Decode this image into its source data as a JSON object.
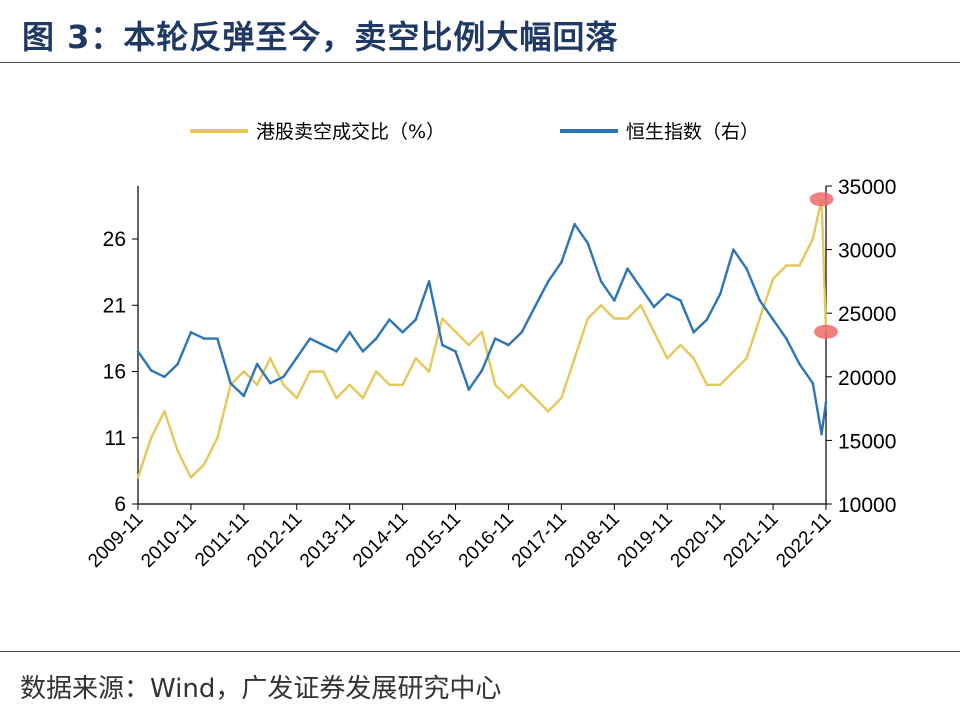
{
  "header": {
    "title": "图 3：本轮反弹至今，卖空比例大幅回落"
  },
  "footer": {
    "source": "数据来源：Wind，广发证券发展研究中心"
  },
  "chart_data": {
    "type": "line",
    "title": "图 3：本轮反弹至今，卖空比例大幅回落",
    "x_start": "2009-11",
    "x_end": "2022-11",
    "x_ticks": [
      "2009-11",
      "2010-11",
      "2011-11",
      "2012-11",
      "2013-11",
      "2014-11",
      "2015-11",
      "2016-11",
      "2017-11",
      "2018-11",
      "2019-11",
      "2020-11",
      "2021-11",
      "2022-11"
    ],
    "y_left": {
      "range": [
        6,
        30
      ],
      "ticks": [
        6,
        11,
        16,
        21,
        26
      ]
    },
    "y_right": {
      "range": [
        10000,
        35000
      ],
      "ticks": [
        10000,
        15000,
        20000,
        25000,
        30000,
        35000
      ]
    },
    "legend_position": "top",
    "grid": false,
    "series": [
      {
        "name": "港股卖空成交比（%）",
        "axis": "left",
        "color": "#e6c75a",
        "points": [
          [
            "2009-11",
            8
          ],
          [
            "2010-02",
            11
          ],
          [
            "2010-05",
            13
          ],
          [
            "2010-08",
            10
          ],
          [
            "2010-11",
            8
          ],
          [
            "2011-02",
            9
          ],
          [
            "2011-05",
            11
          ],
          [
            "2011-08",
            15
          ],
          [
            "2011-11",
            16
          ],
          [
            "2012-02",
            15
          ],
          [
            "2012-05",
            17
          ],
          [
            "2012-08",
            15
          ],
          [
            "2012-11",
            14
          ],
          [
            "2013-02",
            16
          ],
          [
            "2013-05",
            16
          ],
          [
            "2013-08",
            14
          ],
          [
            "2013-11",
            15
          ],
          [
            "2014-02",
            14
          ],
          [
            "2014-05",
            16
          ],
          [
            "2014-08",
            15
          ],
          [
            "2014-11",
            15
          ],
          [
            "2015-02",
            17
          ],
          [
            "2015-05",
            16
          ],
          [
            "2015-08",
            20
          ],
          [
            "2015-11",
            19
          ],
          [
            "2016-02",
            18
          ],
          [
            "2016-05",
            19
          ],
          [
            "2016-08",
            15
          ],
          [
            "2016-11",
            14
          ],
          [
            "2017-02",
            15
          ],
          [
            "2017-05",
            14
          ],
          [
            "2017-08",
            13
          ],
          [
            "2017-11",
            14
          ],
          [
            "2018-02",
            17
          ],
          [
            "2018-05",
            20
          ],
          [
            "2018-08",
            21
          ],
          [
            "2018-11",
            20
          ],
          [
            "2019-02",
            20
          ],
          [
            "2019-05",
            21
          ],
          [
            "2019-08",
            19
          ],
          [
            "2019-11",
            17
          ],
          [
            "2020-02",
            18
          ],
          [
            "2020-05",
            17
          ],
          [
            "2020-08",
            15
          ],
          [
            "2020-11",
            15
          ],
          [
            "2021-02",
            16
          ],
          [
            "2021-05",
            17
          ],
          [
            "2021-08",
            20
          ],
          [
            "2021-11",
            23
          ],
          [
            "2022-02",
            24
          ],
          [
            "2022-05",
            24
          ],
          [
            "2022-08",
            26
          ],
          [
            "2022-10",
            29
          ],
          [
            "2022-11",
            19
          ]
        ]
      },
      {
        "name": "恒生指数（右）",
        "axis": "right",
        "color": "#2e75b6",
        "points": [
          [
            "2009-11",
            22000
          ],
          [
            "2010-02",
            20500
          ],
          [
            "2010-05",
            20000
          ],
          [
            "2010-08",
            21000
          ],
          [
            "2010-11",
            23500
          ],
          [
            "2011-02",
            23000
          ],
          [
            "2011-05",
            23000
          ],
          [
            "2011-08",
            19500
          ],
          [
            "2011-11",
            18500
          ],
          [
            "2012-02",
            21000
          ],
          [
            "2012-05",
            19500
          ],
          [
            "2012-08",
            20000
          ],
          [
            "2012-11",
            21500
          ],
          [
            "2013-02",
            23000
          ],
          [
            "2013-05",
            22500
          ],
          [
            "2013-08",
            22000
          ],
          [
            "2013-11",
            23500
          ],
          [
            "2014-02",
            22000
          ],
          [
            "2014-05",
            23000
          ],
          [
            "2014-08",
            24500
          ],
          [
            "2014-11",
            23500
          ],
          [
            "2015-02",
            24500
          ],
          [
            "2015-05",
            27500
          ],
          [
            "2015-08",
            22500
          ],
          [
            "2015-11",
            22000
          ],
          [
            "2016-02",
            19000
          ],
          [
            "2016-05",
            20500
          ],
          [
            "2016-08",
            23000
          ],
          [
            "2016-11",
            22500
          ],
          [
            "2017-02",
            23500
          ],
          [
            "2017-05",
            25500
          ],
          [
            "2017-08",
            27500
          ],
          [
            "2017-11",
            29000
          ],
          [
            "2018-02",
            32000
          ],
          [
            "2018-05",
            30500
          ],
          [
            "2018-08",
            27500
          ],
          [
            "2018-11",
            26000
          ],
          [
            "2019-02",
            28500
          ],
          [
            "2019-05",
            27000
          ],
          [
            "2019-08",
            25500
          ],
          [
            "2019-11",
            26500
          ],
          [
            "2020-02",
            26000
          ],
          [
            "2020-05",
            23500
          ],
          [
            "2020-08",
            24500
          ],
          [
            "2020-11",
            26500
          ],
          [
            "2021-02",
            30000
          ],
          [
            "2021-05",
            28500
          ],
          [
            "2021-08",
            26000
          ],
          [
            "2021-11",
            24500
          ],
          [
            "2022-02",
            23000
          ],
          [
            "2022-05",
            21000
          ],
          [
            "2022-08",
            19500
          ],
          [
            "2022-10",
            15500
          ],
          [
            "2022-11",
            18000
          ]
        ]
      }
    ],
    "annotations": [
      {
        "type": "marker",
        "axis": "left",
        "x": "2022-10",
        "y": 29,
        "color": "#ef6b6b"
      },
      {
        "type": "marker",
        "axis": "left",
        "x": "2022-11",
        "y": 19,
        "color": "#ef6b6b"
      }
    ]
  }
}
